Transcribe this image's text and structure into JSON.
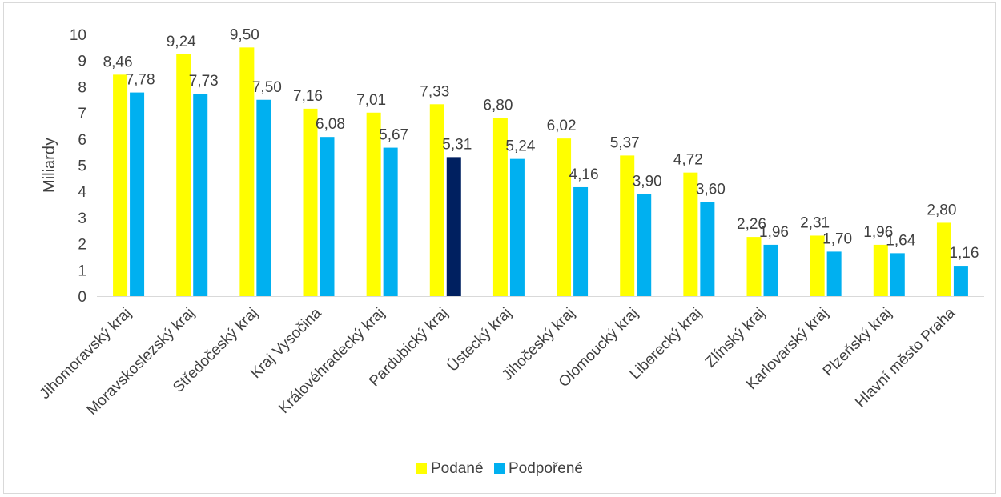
{
  "chart_data": {
    "type": "bar",
    "ylabel": "Miliardy",
    "ylim": [
      0,
      10
    ],
    "yticks": [
      "0",
      "1",
      "2",
      "3",
      "4",
      "5",
      "6",
      "7",
      "8",
      "9",
      "10"
    ],
    "grid": false,
    "legend_position": "bottom",
    "categories": [
      "Jihomoravský kraj",
      "Moravskoslezský kraj",
      "Středočeský kraj",
      "Kraj Vysočina",
      "Královéhradecký kraj",
      "Pardubický kraj",
      "Ústecký kraj",
      "Jihočeský kraj",
      "Olomoucký kraj",
      "Liberecký kraj",
      "Zlínský kraj",
      "Karlovarský kraj",
      "Plzeňský kraj",
      "Hlavní město Praha"
    ],
    "series": [
      {
        "name": "Podané",
        "color": "#ffff00",
        "values": [
          8.46,
          9.24,
          9.5,
          7.16,
          7.01,
          7.33,
          6.8,
          6.02,
          5.37,
          4.72,
          2.26,
          2.31,
          1.96,
          2.8
        ],
        "labels": [
          "8,46",
          "9,24",
          "9,50",
          "7,16",
          "7,01",
          "7,33",
          "6,80",
          "6,02",
          "5,37",
          "4,72",
          "2,26",
          "2,31",
          "1,96",
          "2,80"
        ]
      },
      {
        "name": "Podpořené",
        "color": "#00b0f0",
        "highlight": {
          "index": 5,
          "color": "#002060"
        },
        "values": [
          7.78,
          7.73,
          7.5,
          6.08,
          5.67,
          5.31,
          5.24,
          4.16,
          3.9,
          3.6,
          1.96,
          1.7,
          1.64,
          1.16
        ],
        "labels": [
          "7,78",
          "7,73",
          "7,50",
          "6,08",
          "5,67",
          "5,31",
          "5,24",
          "4,16",
          "3,90",
          "3,60",
          "1,96",
          "1,70",
          "1,64",
          "1,16"
        ]
      }
    ]
  }
}
